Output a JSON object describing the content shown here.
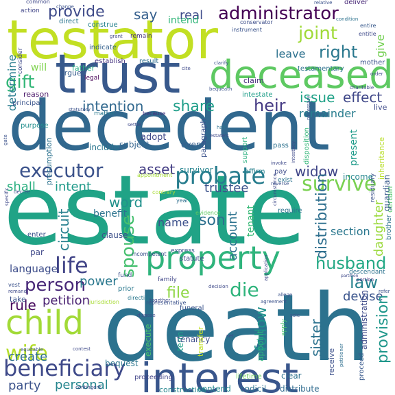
{
  "words": [
    {
      "text": "estate",
      "color": "#20a386"
    },
    {
      "text": "death",
      "color": "#2c728e"
    },
    {
      "text": "decedent",
      "color": "#31688e"
    },
    {
      "text": "testator",
      "color": "#c2df23"
    },
    {
      "text": "trust",
      "color": "#38598c"
    },
    {
      "text": "deceased",
      "color": "#5ec962"
    },
    {
      "text": "interest",
      "color": "#39568c"
    },
    {
      "text": "property",
      "color": "#2fb47c"
    },
    {
      "text": "child",
      "color": "#a2da37"
    },
    {
      "text": "administrator",
      "color": "#440154"
    },
    {
      "text": "executor",
      "color": "#3b528b"
    },
    {
      "text": "probate",
      "color": "#287d8e"
    },
    {
      "text": "beneficiary",
      "color": "#3e4989"
    },
    {
      "text": "survive",
      "color": "#7ad151"
    },
    {
      "text": "life",
      "color": "#414487"
    },
    {
      "text": "husband",
      "color": "#22a884"
    },
    {
      "text": "wife",
      "color": "#b5de2b"
    },
    {
      "text": "person",
      "color": "#482878"
    },
    {
      "text": "provide",
      "color": "#3e4a89"
    },
    {
      "text": "right",
      "color": "#2a788e"
    },
    {
      "text": "gift",
      "color": "#35b779"
    },
    {
      "text": "heir",
      "color": "#443983"
    },
    {
      "text": "share",
      "color": "#1f9e89"
    },
    {
      "text": "intention",
      "color": "#31688e"
    },
    {
      "text": "joint",
      "color": "#a0da39"
    },
    {
      "text": "widow",
      "color": "#404688"
    },
    {
      "text": "spouse",
      "color": "#46c06f"
    },
    {
      "text": "die",
      "color": "#2fb47c"
    },
    {
      "text": "law",
      "color": "#26828e"
    },
    {
      "text": "son",
      "color": "#2d708e"
    },
    {
      "text": "asset",
      "color": "#433d84"
    },
    {
      "text": "trustee",
      "color": "#3b528b"
    },
    {
      "text": "issue",
      "color": "#1fa187"
    },
    {
      "text": "effect",
      "color": "#3f4788"
    },
    {
      "text": "word",
      "color": "#21918c"
    },
    {
      "text": "shall",
      "color": "#29af7f"
    },
    {
      "text": "intent",
      "color": "#1f9a8a"
    },
    {
      "text": "account",
      "color": "#2c728e"
    },
    {
      "text": "remainder",
      "color": "#287c8e"
    },
    {
      "text": "power",
      "color": "#2a788e"
    },
    {
      "text": "file",
      "color": "#8fd744"
    },
    {
      "text": "rule",
      "color": "#46085c"
    },
    {
      "text": "petition",
      "color": "#481f70"
    },
    {
      "text": "create",
      "color": "#2e6e8e"
    },
    {
      "text": "party",
      "color": "#3b528b"
    },
    {
      "text": "personal",
      "color": "#25858e"
    },
    {
      "text": "sister",
      "color": "#2c728e"
    },
    {
      "text": "devise",
      "color": "#3a548c"
    },
    {
      "text": "follow",
      "color": "#20928c"
    },
    {
      "text": "distribution",
      "color": "#2e6f8e"
    },
    {
      "text": "provision",
      "color": "#1f978b"
    },
    {
      "text": "daughter",
      "color": "#9bd93c"
    },
    {
      "text": "name",
      "color": "#3c508b"
    },
    {
      "text": "circuit",
      "color": "#27808e"
    },
    {
      "text": "say",
      "color": "#355f8d"
    },
    {
      "text": "real",
      "color": "#3e4c8a"
    },
    {
      "text": "leave",
      "color": "#2c718e"
    },
    {
      "text": "give",
      "color": "#75d054"
    },
    {
      "text": "determine",
      "color": "#287c8e"
    },
    {
      "text": "section",
      "color": "#2a778e"
    },
    {
      "text": "income",
      "color": "#24868e"
    },
    {
      "text": "will",
      "color": "#7fd34e"
    },
    {
      "text": "present",
      "color": "#1e9b8a"
    },
    {
      "text": "language",
      "color": "#3d4d8a"
    },
    {
      "text": "tenant",
      "color": "#38b977"
    },
    {
      "text": "intend",
      "color": "#32b67a"
    },
    {
      "text": "benefit",
      "color": "#2c738e"
    },
    {
      "text": "adopt",
      "color": "#3f4889"
    },
    {
      "text": "subject",
      "color": "#32648e"
    },
    {
      "text": "include",
      "color": "#2a768e"
    },
    {
      "text": "event",
      "color": "#355e8d"
    },
    {
      "text": "survivor",
      "color": "#25838e"
    },
    {
      "text": "clause",
      "color": "#3c4f8a"
    },
    {
      "text": "term",
      "color": "#1fa188"
    },
    {
      "text": "bequest",
      "color": "#2b758e"
    },
    {
      "text": "execute",
      "color": "#4ac16d"
    },
    {
      "text": "tenancy",
      "color": "#3d4e8a"
    },
    {
      "text": "contend",
      "color": "#24878e"
    },
    {
      "text": "codicil",
      "color": "#2c728e"
    },
    {
      "text": "distribute",
      "color": "#2f6b8e"
    },
    {
      "text": "construction",
      "color": "#25858e"
    },
    {
      "text": "proceeding",
      "color": "#404387"
    },
    {
      "text": "lifetime",
      "color": "#6ccd5a"
    },
    {
      "text": "clear",
      "color": "#2d718e"
    },
    {
      "text": "appoint",
      "color": "#2fb47c"
    },
    {
      "text": "administration",
      "color": "#3e4a89"
    },
    {
      "text": "certain",
      "color": "#52c569"
    },
    {
      "text": "guardian",
      "color": "#38598c"
    },
    {
      "text": "inheritance",
      "color": "#b8de29"
    },
    {
      "text": "receive",
      "color": "#3c508b"
    },
    {
      "text": "testamentary",
      "color": "#2d708e"
    },
    {
      "text": "father",
      "color": "#27ad81"
    },
    {
      "text": "mother",
      "color": "#3b528b"
    },
    {
      "text": "intestate",
      "color": "#1f9e89"
    },
    {
      "text": "claim",
      "color": "#472d7b"
    },
    {
      "text": "establish",
      "color": "#46337f"
    },
    {
      "text": "result",
      "color": "#2e6e8e"
    },
    {
      "text": "legal",
      "color": "#440154"
    },
    {
      "text": "argue",
      "color": "#365c8d"
    },
    {
      "text": "indicate",
      "color": "#34618d"
    },
    {
      "text": "reason",
      "color": "#481668"
    },
    {
      "text": "purpose",
      "color": "#218e8d"
    },
    {
      "text": "principal",
      "color": "#3a548c"
    },
    {
      "text": "consider",
      "color": "#3e4989"
    },
    {
      "text": "construe",
      "color": "#26828e"
    },
    {
      "text": "direct",
      "color": "#2b758e"
    },
    {
      "text": "action",
      "color": "#404588"
    },
    {
      "text": "common",
      "color": "#3f4889"
    },
    {
      "text": "conservator",
      "color": "#3d4e8a"
    },
    {
      "text": "instrument",
      "color": "#3a538b"
    },
    {
      "text": "remain",
      "color": "#46337f"
    },
    {
      "text": "grant",
      "color": "#3f4788"
    },
    {
      "text": "deliver",
      "color": "#482878"
    },
    {
      "text": "relative",
      "color": "#3b528b"
    },
    {
      "text": "condition",
      "color": "#2c728e"
    },
    {
      "text": "entire",
      "color": "#38598c"
    },
    {
      "text": "entitle",
      "color": "#3e4989"
    },
    {
      "text": "support",
      "color": "#2ab07f"
    },
    {
      "text": "affirm",
      "color": "#27808e"
    },
    {
      "text": "pay",
      "color": "#3e4c8a"
    },
    {
      "text": "exist",
      "color": "#2c728e"
    },
    {
      "text": "require",
      "color": "#2c728e"
    },
    {
      "text": "evidence",
      "color": "#5ec962"
    },
    {
      "text": "express",
      "color": "#3a548c"
    },
    {
      "text": "statute",
      "color": "#3e4989"
    },
    {
      "text": "appointment",
      "color": "#a5db36"
    },
    {
      "text": "year",
      "color": "#2e6e8e"
    },
    {
      "text": "contrary",
      "color": "#a8db34"
    },
    {
      "text": "presumption",
      "color": "#2c728e"
    },
    {
      "text": "matter",
      "color": "#2a788e"
    },
    {
      "text": "statutory",
      "color": "#3b528b"
    },
    {
      "text": "because",
      "color": "#46337f"
    },
    {
      "text": "live",
      "color": "#3e4a89"
    },
    {
      "text": "disposition",
      "color": "#35b779"
    },
    {
      "text": "pass",
      "color": "#2c718e"
    },
    {
      "text": "funeral",
      "color": "#3a548c"
    },
    {
      "text": "representative",
      "color": "#3b528b"
    },
    {
      "text": "transfer",
      "color": "#c2df23"
    },
    {
      "text": "family",
      "color": "#404688"
    },
    {
      "text": "prior",
      "color": "#2a788e"
    },
    {
      "text": "fund",
      "color": "#3b528b"
    },
    {
      "text": "descendant",
      "color": "#2c728e"
    },
    {
      "text": "portion",
      "color": "#443983"
    },
    {
      "text": "partition",
      "color": "#3e4989"
    },
    {
      "text": "petitioner",
      "color": "#2e6e8e"
    },
    {
      "text": "apply",
      "color": "#4ac16d"
    },
    {
      "text": "proceed",
      "color": "#38598c"
    },
    {
      "text": "dispose",
      "color": "#3e4989"
    },
    {
      "text": "direction",
      "color": "#2a788e"
    },
    {
      "text": "jurisdiction",
      "color": "#a8db34"
    },
    {
      "text": "take",
      "color": "#3b528b"
    },
    {
      "text": "vest",
      "color": "#3b528b"
    },
    {
      "text": "remand",
      "color": "#3e4989"
    },
    {
      "text": "par",
      "color": "#3f4889"
    },
    {
      "text": "enter",
      "color": "#3b528b"
    },
    {
      "text": "decree",
      "color": "#3e4989"
    },
    {
      "text": "contest",
      "color": "#3e4989"
    },
    {
      "text": "equitable",
      "color": "#3b528b"
    },
    {
      "text": "change",
      "color": "#3b528b"
    },
    {
      "text": "contingent",
      "color": "#3e4989"
    },
    {
      "text": "residuary",
      "color": "#3b528b"
    },
    {
      "text": "brother",
      "color": "#2c728e"
    },
    {
      "text": "intestacy",
      "color": "#3e4989"
    },
    {
      "text": "circumstance",
      "color": "#3e4989"
    },
    {
      "text": "reverse",
      "color": "#3b528b"
    },
    {
      "text": "invoke",
      "color": "#3e4989"
    },
    {
      "text": "paragraph",
      "color": "#3b528b"
    },
    {
      "text": "specific",
      "color": "#3e4989"
    },
    {
      "text": "gate",
      "color": "#3b528b"
    },
    {
      "text": "order",
      "color": "#3e4989"
    },
    {
      "text": "refer",
      "color": "#3b528b"
    },
    {
      "text": "settle",
      "color": "#3e4989"
    },
    {
      "text": "clarify",
      "color": "#3b528b"
    },
    {
      "text": "cite",
      "color": "#3e4989"
    },
    {
      "text": "half",
      "color": "#2c728e"
    },
    {
      "text": "sole",
      "color": "#3b528b"
    },
    {
      "text": "estate's",
      "color": "#3e4989"
    },
    {
      "text": "agreement",
      "color": "#3b528b"
    },
    {
      "text": "together",
      "color": "#3e4989"
    },
    {
      "text": "allege",
      "color": "#3b528b"
    },
    {
      "text": "decision",
      "color": "#3e4989"
    },
    {
      "text": "incompetent",
      "color": "#3b528b"
    },
    {
      "text": "application",
      "color": "#3e4989"
    },
    {
      "text": "bequeath",
      "color": "#3b528b"
    },
    {
      "text": "charitable",
      "color": "#3e4989"
    },
    {
      "text": "necessary",
      "color": "#3b528b"
    },
    {
      "text": "set",
      "color": "#3e4989"
    }
  ]
}
